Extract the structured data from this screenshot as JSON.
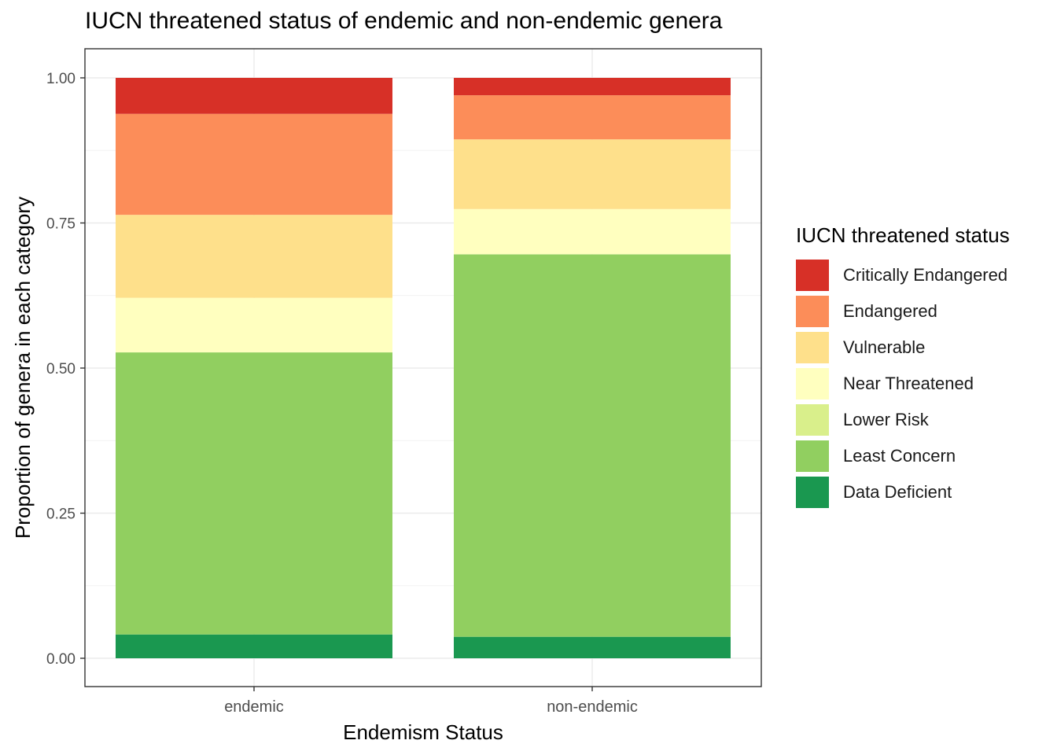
{
  "chart_data": {
    "type": "bar",
    "stacked": true,
    "title": "IUCN threatened status of endemic and non-endemic genera",
    "xlabel": "Endemism Status",
    "ylabel": "Proportion of genera in each category",
    "categories": [
      "endemic",
      "non-endemic"
    ],
    "ylim": [
      -0.05,
      1.05
    ],
    "yticks": [
      "0.00",
      "0.25",
      "0.50",
      "0.75",
      "1.00"
    ],
    "yticks_values": [
      0,
      0.25,
      0.5,
      0.75,
      1.0
    ],
    "grid": true,
    "legend_title": "IUCN threatened status",
    "legend_position": "right",
    "series": [
      {
        "name": "Critically Endangered",
        "color": "#d73027",
        "values": [
          0.062,
          0.03
        ]
      },
      {
        "name": "Endangered",
        "color": "#fc8d59",
        "values": [
          0.174,
          0.076
        ]
      },
      {
        "name": "Vulnerable",
        "color": "#fee08b",
        "values": [
          0.143,
          0.12
        ]
      },
      {
        "name": "Near Threatened",
        "color": "#ffffbf",
        "values": [
          0.094,
          0.078
        ]
      },
      {
        "name": "Lower Risk",
        "color": "#d9ef8b",
        "values": [
          0.0,
          0.0
        ]
      },
      {
        "name": "Least Concern",
        "color": "#91cf60",
        "values": [
          0.486,
          0.659
        ]
      },
      {
        "name": "Data Deficient",
        "color": "#1a9850",
        "values": [
          0.041,
          0.037
        ]
      }
    ]
  }
}
